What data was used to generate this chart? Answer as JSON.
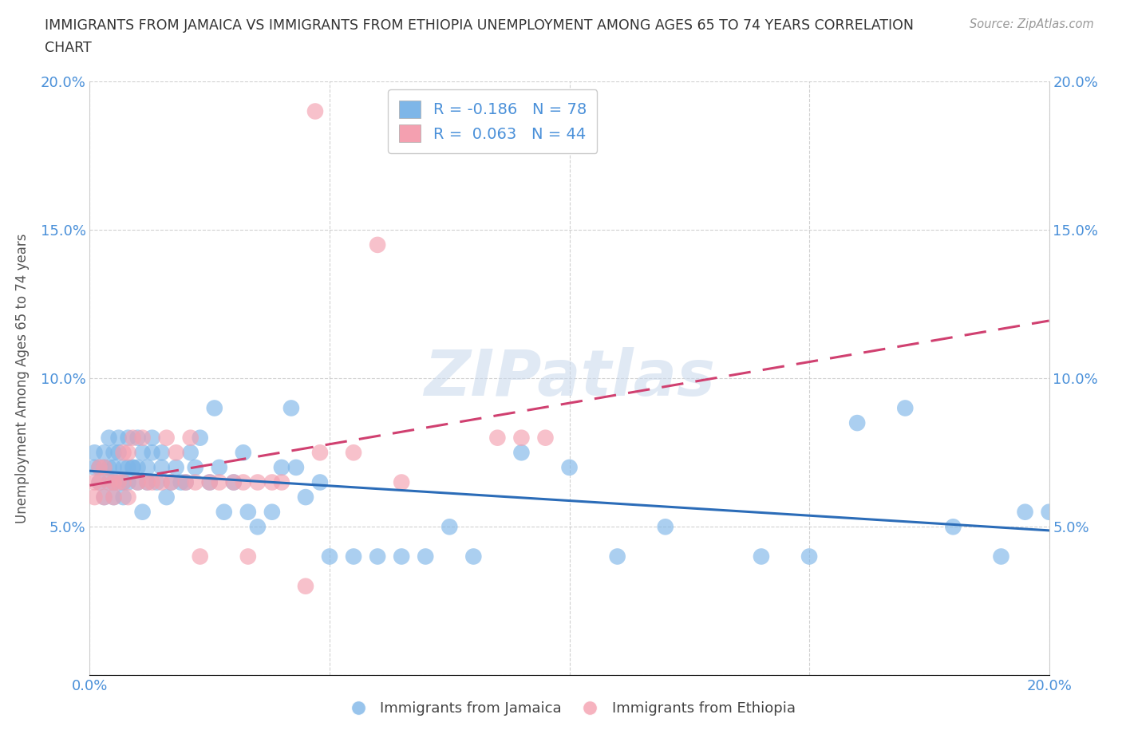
{
  "title_line1": "IMMIGRANTS FROM JAMAICA VS IMMIGRANTS FROM ETHIOPIA UNEMPLOYMENT AMONG AGES 65 TO 74 YEARS CORRELATION",
  "title_line2": "CHART",
  "source_text": "Source: ZipAtlas.com",
  "ylabel": "Unemployment Among Ages 65 to 74 years",
  "xlim": [
    0.0,
    0.2
  ],
  "ylim": [
    0.0,
    0.2
  ],
  "xticks": [
    0.0,
    0.05,
    0.1,
    0.15,
    0.2
  ],
  "yticks": [
    0.0,
    0.05,
    0.1,
    0.15,
    0.2
  ],
  "xticklabels": [
    "0.0%",
    "",
    "",
    "",
    "20.0%"
  ],
  "yticklabels_left": [
    "",
    "5.0%",
    "10.0%",
    "15.0%",
    "20.0%"
  ],
  "yticklabels_right": [
    "",
    "5.0%",
    "10.0%",
    "15.0%",
    "20.0%"
  ],
  "jamaica_color": "#7EB6E8",
  "ethiopia_color": "#F4A0B0",
  "jamaica_line_color": "#2B6CB8",
  "ethiopia_line_color": "#D04070",
  "jamaica_R": -0.186,
  "jamaica_N": 78,
  "ethiopia_R": 0.063,
  "ethiopia_N": 44,
  "watermark_text": "ZIPatlas",
  "jamaica_x": [
    0.001,
    0.001,
    0.002,
    0.002,
    0.003,
    0.003,
    0.003,
    0.004,
    0.004,
    0.004,
    0.005,
    0.005,
    0.005,
    0.005,
    0.006,
    0.006,
    0.006,
    0.007,
    0.007,
    0.007,
    0.008,
    0.008,
    0.008,
    0.009,
    0.009,
    0.01,
    0.01,
    0.01,
    0.011,
    0.011,
    0.012,
    0.012,
    0.013,
    0.013,
    0.014,
    0.015,
    0.015,
    0.016,
    0.017,
    0.018,
    0.019,
    0.02,
    0.021,
    0.022,
    0.023,
    0.025,
    0.026,
    0.027,
    0.028,
    0.03,
    0.032,
    0.033,
    0.035,
    0.038,
    0.04,
    0.042,
    0.043,
    0.045,
    0.048,
    0.05,
    0.055,
    0.06,
    0.065,
    0.07,
    0.075,
    0.08,
    0.09,
    0.1,
    0.11,
    0.12,
    0.14,
    0.15,
    0.16,
    0.17,
    0.18,
    0.19,
    0.195,
    0.2
  ],
  "jamaica_y": [
    0.07,
    0.075,
    0.07,
    0.065,
    0.06,
    0.07,
    0.075,
    0.065,
    0.08,
    0.07,
    0.075,
    0.065,
    0.06,
    0.07,
    0.075,
    0.065,
    0.08,
    0.065,
    0.06,
    0.07,
    0.08,
    0.065,
    0.07,
    0.07,
    0.07,
    0.07,
    0.08,
    0.065,
    0.075,
    0.055,
    0.07,
    0.065,
    0.075,
    0.08,
    0.065,
    0.07,
    0.075,
    0.06,
    0.065,
    0.07,
    0.065,
    0.065,
    0.075,
    0.07,
    0.08,
    0.065,
    0.09,
    0.07,
    0.055,
    0.065,
    0.075,
    0.055,
    0.05,
    0.055,
    0.07,
    0.09,
    0.07,
    0.06,
    0.065,
    0.04,
    0.04,
    0.04,
    0.04,
    0.04,
    0.05,
    0.04,
    0.075,
    0.07,
    0.04,
    0.05,
    0.04,
    0.04,
    0.085,
    0.09,
    0.05,
    0.04,
    0.055,
    0.055
  ],
  "ethiopia_x": [
    0.001,
    0.001,
    0.002,
    0.002,
    0.003,
    0.003,
    0.004,
    0.005,
    0.005,
    0.006,
    0.007,
    0.007,
    0.008,
    0.008,
    0.009,
    0.01,
    0.011,
    0.012,
    0.013,
    0.015,
    0.016,
    0.017,
    0.018,
    0.02,
    0.021,
    0.022,
    0.023,
    0.025,
    0.027,
    0.03,
    0.032,
    0.033,
    0.035,
    0.038,
    0.04,
    0.045,
    0.047,
    0.048,
    0.055,
    0.06,
    0.065,
    0.085,
    0.09,
    0.095
  ],
  "ethiopia_y": [
    0.065,
    0.06,
    0.065,
    0.07,
    0.07,
    0.06,
    0.065,
    0.065,
    0.06,
    0.065,
    0.075,
    0.065,
    0.06,
    0.075,
    0.08,
    0.065,
    0.08,
    0.065,
    0.065,
    0.065,
    0.08,
    0.065,
    0.075,
    0.065,
    0.08,
    0.065,
    0.04,
    0.065,
    0.065,
    0.065,
    0.065,
    0.04,
    0.065,
    0.065,
    0.065,
    0.03,
    0.19,
    0.075,
    0.075,
    0.145,
    0.065,
    0.08,
    0.08,
    0.08
  ],
  "background_color": "#ffffff",
  "grid_color": "#cccccc",
  "title_color": "#333333",
  "axis_label_color": "#555555",
  "tick_color": "#4A90D9",
  "legend_text_color": "#4A90D9",
  "bottom_legend_color": "#444444"
}
